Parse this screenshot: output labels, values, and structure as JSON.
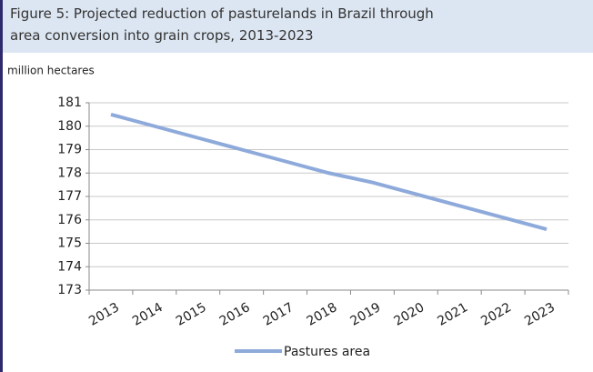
{
  "chart_data": {
    "type": "line",
    "title": [
      "Figure 5: Projected reduction of pasturelands in Brazil through",
      "area conversion into grain crops, 2013-2023"
    ],
    "y_label": "million hectares",
    "categories": [
      "2013",
      "2014",
      "2015",
      "2016",
      "2017",
      "2018",
      "2019",
      "2020",
      "2021",
      "2022",
      "2023"
    ],
    "series": [
      {
        "name": "Pastures area",
        "color": "#8eaadb",
        "values": [
          180.5,
          180.0,
          179.5,
          179.0,
          178.5,
          178.0,
          177.6,
          177.1,
          176.6,
          176.1,
          175.6
        ]
      }
    ],
    "ylim": [
      173,
      181
    ],
    "yticks": [
      173,
      174,
      175,
      176,
      177,
      178,
      179,
      180,
      181
    ],
    "grid": true,
    "legend": "bottom"
  }
}
